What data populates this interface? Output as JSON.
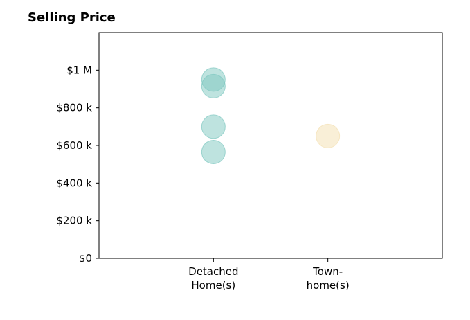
{
  "chart_data": {
    "type": "scatter",
    "title": "Selling Price",
    "xlabel": "",
    "ylabel": "",
    "categories": [
      [
        "Detached",
        "Home(s)"
      ],
      [
        "Town-",
        "home(s)"
      ]
    ],
    "xlim": [
      0,
      3
    ],
    "ylim": [
      0,
      1200000
    ],
    "yticks": [
      0,
      200000,
      400000,
      600000,
      800000,
      1000000
    ],
    "ytick_labels": [
      "$0",
      "$200 k",
      "$400 k",
      "$600 k",
      "$800 k",
      "$1 M"
    ],
    "grid": false,
    "series": [
      {
        "category_index": 0,
        "color": "#7ec8c0",
        "values": [
          950000,
          915000,
          700000,
          565000
        ]
      },
      {
        "category_index": 1,
        "color": "#f3dfb0",
        "values": [
          650000
        ]
      }
    ]
  }
}
